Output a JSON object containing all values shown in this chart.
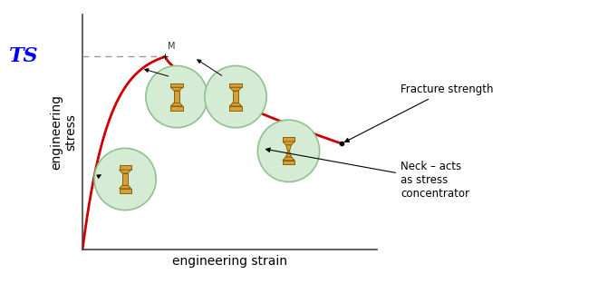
{
  "xlabel": "engineering strain",
  "ylabel": "engineering\nstress",
  "ts_label": "TS",
  "ts_color": "#0000ff",
  "curve_color": "#cc0000",
  "dashed_color": "#999999",
  "background": "white",
  "annotation_fracture": "Fracture strength",
  "annotation_neck": "Neck – acts\nas stress\nconcentrator",
  "M_label": "M",
  "specimen_fill": "#d4a040",
  "specimen_edge": "#8B6000",
  "oval_fill": "#d4ecd4",
  "oval_edge": "#90c090",
  "figwidth": 6.5,
  "figheight": 3.13,
  "dpi": 100
}
